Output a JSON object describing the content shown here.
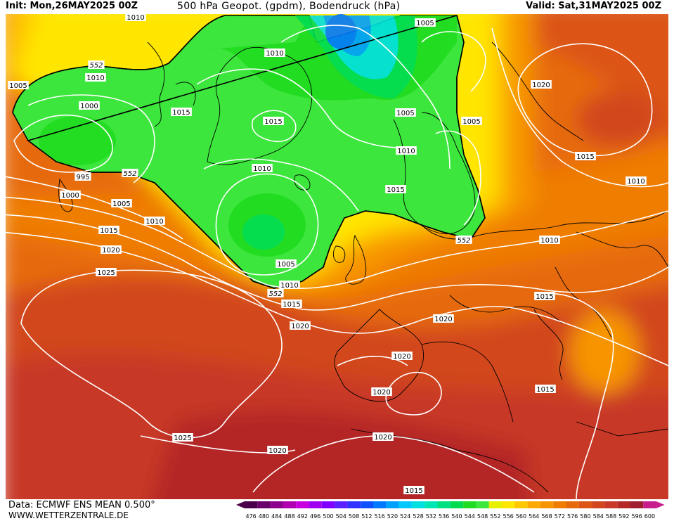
{
  "header": {
    "init": "Init: Mon,26MAY2025 00Z",
    "title": "500 hPa Geopot. (gpdm), Bodendruck (hPa)",
    "valid": "Valid: Sat,31MAY2025 00Z"
  },
  "footer": {
    "data_source": "Data: ECMWF ENS MEAN 0.500°",
    "website": "WWW.WETTERZENTRALE.DE"
  },
  "colorbar": {
    "labels": [
      "476",
      "480",
      "484",
      "488",
      "492",
      "496",
      "500",
      "504",
      "508",
      "512",
      "516",
      "520",
      "524",
      "528",
      "532",
      "536",
      "540",
      "544",
      "548",
      "552",
      "556",
      "560",
      "564",
      "568",
      "572",
      "576",
      "580",
      "584",
      "588",
      "592",
      "596",
      "600"
    ],
    "colors": [
      "#4b004b",
      "#6a006a",
      "#8e008e",
      "#b000b0",
      "#c800e0",
      "#a000f0",
      "#8000ff",
      "#5a20ff",
      "#3030ff",
      "#1050ff",
      "#0078ff",
      "#00a0ff",
      "#00c8ff",
      "#00e0e0",
      "#00e6b4",
      "#00e080",
      "#00dc50",
      "#20dc20",
      "#3ce63c",
      "#e6f000",
      "#ffe600",
      "#ffc800",
      "#ffaa00",
      "#f79400",
      "#ef7d00",
      "#e66a0a",
      "#dc5514",
      "#d2461e",
      "#c83728",
      "#b42828",
      "#a01e32",
      "#c81e8c"
    ]
  },
  "isobar_labels": [
    {
      "text": "1010"
    },
    {
      "text": "1005"
    },
    {
      "text": "1010"
    },
    {
      "text": "552"
    },
    {
      "text": "1005"
    },
    {
      "text": "1010"
    },
    {
      "text": "1000"
    },
    {
      "text": "1015"
    },
    {
      "text": "1015"
    },
    {
      "text": "1005"
    },
    {
      "text": "1005"
    },
    {
      "text": "1020"
    },
    {
      "text": "1015"
    },
    {
      "text": "1010"
    },
    {
      "text": "995"
    },
    {
      "text": "552"
    },
    {
      "text": "1010"
    },
    {
      "text": "1000"
    },
    {
      "text": "1015"
    },
    {
      "text": "1005"
    },
    {
      "text": "1010"
    },
    {
      "text": "1015"
    },
    {
      "text": "1010"
    },
    {
      "text": "552"
    },
    {
      "text": "1010"
    },
    {
      "text": "1020"
    },
    {
      "text": "1025"
    },
    {
      "text": "1005"
    },
    {
      "text": "1010"
    },
    {
      "text": "552"
    },
    {
      "text": "1015"
    },
    {
      "text": "1015"
    },
    {
      "text": "1020"
    },
    {
      "text": "1020"
    },
    {
      "text": "1020"
    },
    {
      "text": "1020"
    },
    {
      "text": "1015"
    },
    {
      "text": "1020"
    },
    {
      "text": "1025"
    },
    {
      "text": "1020"
    },
    {
      "text": "1015"
    }
  ]
}
